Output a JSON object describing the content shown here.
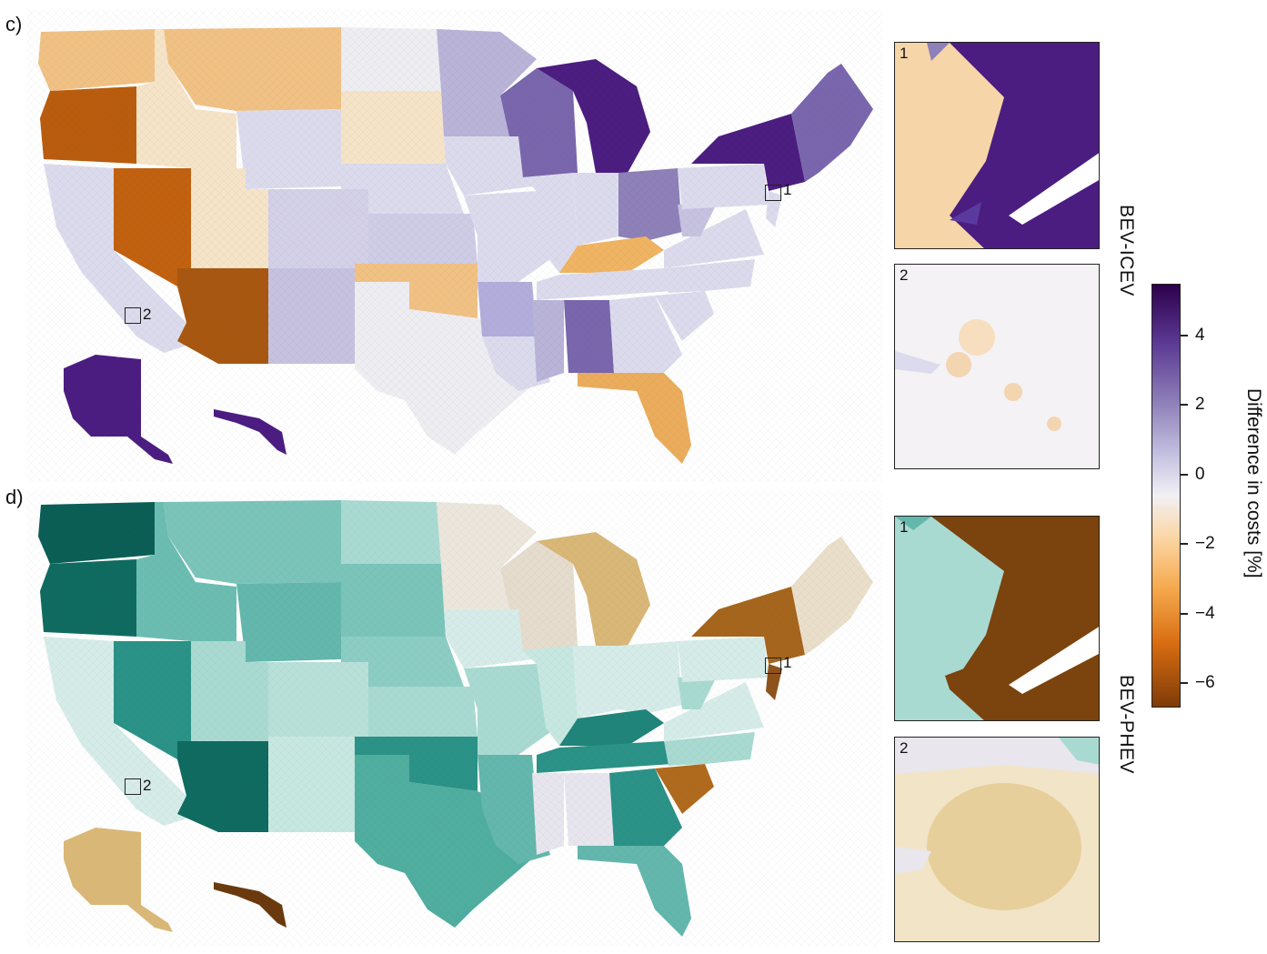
{
  "panels": {
    "c": {
      "letter": "c)",
      "row_label": "BEV-ICEV",
      "inset1": "1",
      "inset2": "2",
      "marker1": "1",
      "marker2": "2"
    },
    "d": {
      "letter": "d)",
      "row_label": "BEV-PHEV",
      "inset1": "1",
      "inset2": "2",
      "marker1": "1",
      "marker2": "2"
    }
  },
  "colorbar": {
    "title": "Difference in costs [%]",
    "ticks": [
      "4",
      "2",
      "0",
      "−2",
      "−4",
      "−6"
    ],
    "range": [
      -7,
      5.5
    ],
    "colors": {
      "max": "#2d004b",
      "mid": "#f1f0f4",
      "min": "#7f3b08"
    }
  },
  "colors": {
    "dark_purple": "#4b1d80",
    "purple": "#7a66ad",
    "lavender": "#b9b4d8",
    "pale_lavender": "#dcdbed",
    "near_white": "#eeedf2",
    "cream": "#f6e4c8",
    "light_orange": "#f1c184",
    "orange": "#e59a3c",
    "dark_orange": "#b95c0d",
    "dark_teal": "#0b5e55",
    "teal": "#2a9287",
    "mid_teal": "#63b7ac",
    "light_teal": "#a9dad2",
    "pale_teal": "#d6ece8",
    "tan": "#e7c888",
    "brown": "#a5651c",
    "dark_brown": "#7b430d"
  }
}
